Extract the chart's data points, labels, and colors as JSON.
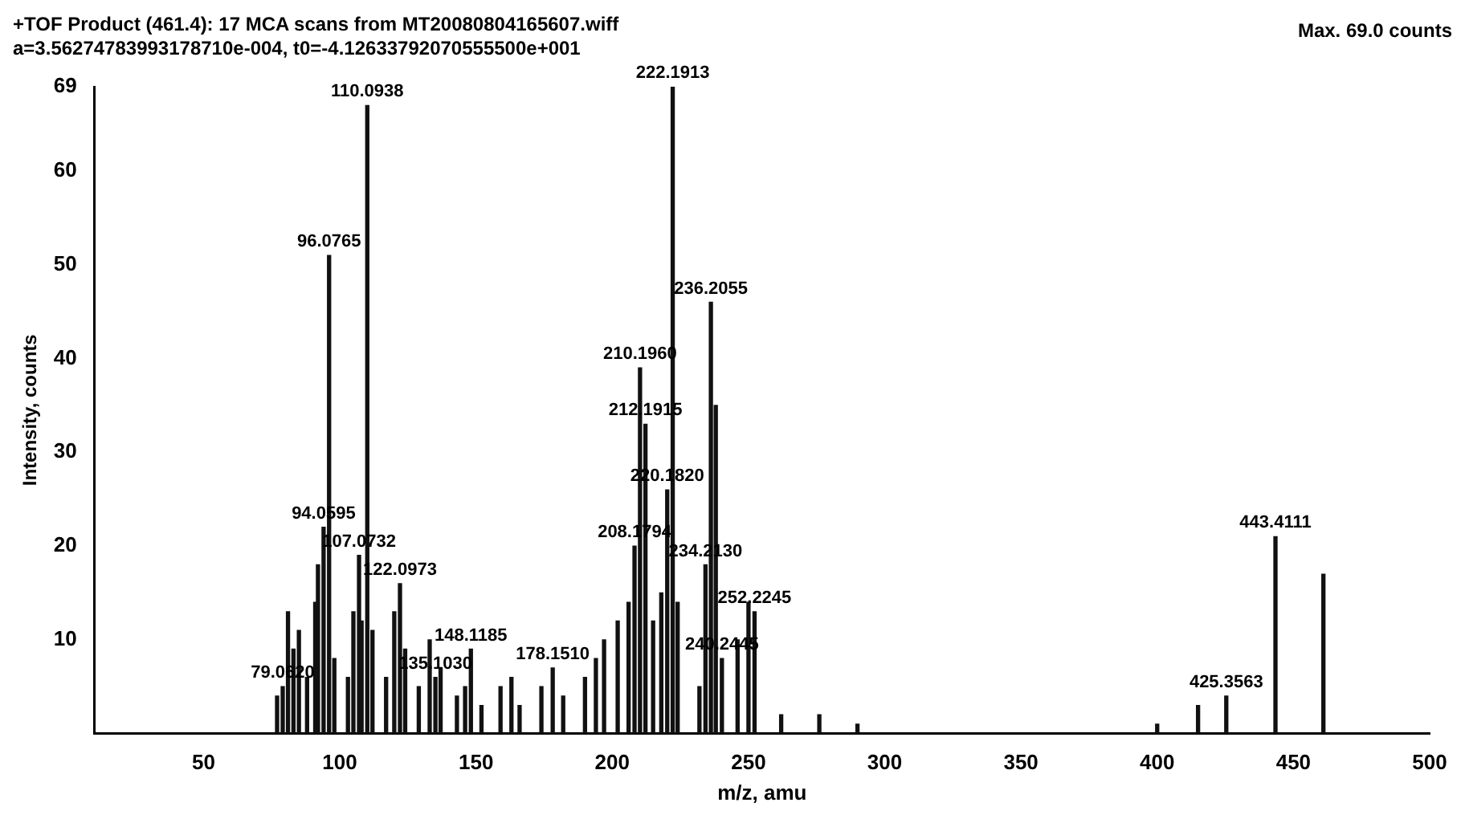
{
  "chart_data": {
    "type": "bar",
    "title": "+TOF Product (461.4): 17 MCA scans from MT20080804165607.wiff",
    "subtitle": "a=3.56274783993178710e-004, t0=-4.12633792070555500e+001",
    "xlabel": "m/z, amu",
    "ylabel": "Intensity, counts",
    "x": [
      77,
      79.062,
      81,
      83,
      85,
      88,
      91,
      92,
      94.0595,
      96.0765,
      98,
      103,
      105,
      107.0732,
      108,
      110.0938,
      112,
      117,
      120,
      122.0973,
      124,
      129,
      133,
      135.103,
      137,
      143,
      146,
      148.1185,
      152,
      159,
      163,
      166,
      174,
      178.151,
      182,
      190,
      194,
      197,
      202,
      206,
      208.1794,
      210.196,
      212.1915,
      215,
      218,
      220.182,
      222.1913,
      224,
      232,
      234.213,
      236.2055,
      238,
      240.2445,
      246,
      250,
      252.2245,
      262,
      276,
      290,
      400,
      415,
      425.3563,
      443.4111,
      461
    ],
    "values": [
      4,
      5,
      13,
      9,
      11,
      6,
      14,
      18,
      22,
      51,
      8,
      6,
      13,
      19,
      12,
      67,
      11,
      6,
      13,
      16,
      9,
      5,
      10,
      6,
      7,
      4,
      5,
      9,
      3,
      5,
      6,
      3,
      5,
      7,
      4,
      6,
      8,
      10,
      12,
      14,
      20,
      39,
      33,
      12,
      15,
      26,
      69,
      14,
      5,
      18,
      46,
      35,
      8,
      10,
      14,
      13,
      2,
      2,
      1,
      1,
      3,
      4,
      21,
      17
    ],
    "color": "#111111",
    "xlim": [
      10,
      500
    ],
    "xticks": [
      50,
      100,
      150,
      200,
      250,
      300,
      350,
      400,
      450,
      500
    ],
    "ylim": [
      0,
      69
    ],
    "yticks": [
      10,
      20,
      30,
      40,
      50,
      60,
      69
    ],
    "grid": false,
    "legend": false,
    "annotations": [
      {
        "text": "79.0620",
        "x": 79.062,
        "y": 5
      },
      {
        "text": "94.0595",
        "x": 94.0595,
        "y": 22
      },
      {
        "text": "96.0765",
        "x": 96.0765,
        "y": 51
      },
      {
        "text": "107.0732",
        "x": 107.0732,
        "y": 19
      },
      {
        "text": "110.0938",
        "x": 110.0938,
        "y": 67
      },
      {
        "text": "122.0973",
        "x": 122.0973,
        "y": 16
      },
      {
        "text": "135.1030",
        "x": 135.103,
        "y": 6
      },
      {
        "text": "148.1185",
        "x": 148.1185,
        "y": 9
      },
      {
        "text": "178.1510",
        "x": 178.151,
        "y": 7
      },
      {
        "text": "208.1794",
        "x": 208.1794,
        "y": 20
      },
      {
        "text": "210.1960",
        "x": 210.196,
        "y": 39
      },
      {
        "text": "212.1915",
        "x": 212.1915,
        "y": 33
      },
      {
        "text": "220.1820",
        "x": 220.182,
        "y": 26
      },
      {
        "text": "222.1913",
        "x": 222.1913,
        "y": 69
      },
      {
        "text": "234.2130",
        "x": 234.213,
        "y": 18
      },
      {
        "text": "236.2055",
        "x": 236.2055,
        "y": 46
      },
      {
        "text": "240.2445",
        "x": 240.2445,
        "y": 8
      },
      {
        "text": "252.2245",
        "x": 252.2245,
        "y": 13
      },
      {
        "text": "425.3563",
        "x": 425.3563,
        "y": 4
      },
      {
        "text": "443.4111",
        "x": 443.4111,
        "y": 21
      },
      "Max. 69.0 counts"
    ]
  }
}
